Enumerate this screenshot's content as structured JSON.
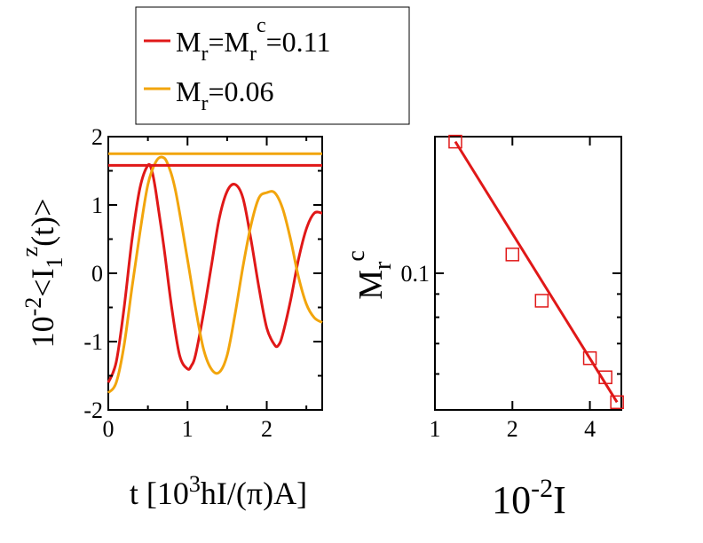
{
  "colors": {
    "red": "#e01818",
    "orange": "#f2a50c",
    "axis": "#000000"
  },
  "chart_data": [
    {
      "type": "line",
      "xlabel": "t [10³hI/(π)A]",
      "ylabel": "10⁻²<I₁ᶻ(t)>",
      "xlim": [
        0,
        2.7
      ],
      "ylim": [
        -2,
        2
      ],
      "x_ticks": [
        "0",
        "1",
        "2"
      ],
      "y_ticks": [
        "-2",
        "-1",
        "0",
        "1",
        "2"
      ],
      "legend": {
        "placement": "top",
        "entries": [
          {
            "label": "M_r=M_r^c=0.11",
            "color": "#e01818"
          },
          {
            "label": "M_r=0.06",
            "color": "#f2a50c"
          }
        ]
      },
      "series": [
        {
          "name": "M_r=M_r^c=0.11",
          "color": "#e01818",
          "x": [
            0,
            0.1,
            0.2,
            0.3,
            0.4,
            0.5,
            0.55,
            0.6,
            0.7,
            0.8,
            0.9,
            1.0,
            1.05,
            1.1,
            1.2,
            1.3,
            1.4,
            1.5,
            1.6,
            1.7,
            1.8,
            1.9,
            2.0,
            2.1,
            2.15,
            2.2,
            2.3,
            2.4,
            2.5,
            2.6,
            2.7
          ],
          "y": [
            -1.6,
            -1.3,
            -0.5,
            0.5,
            1.25,
            1.58,
            1.5,
            1.2,
            0.4,
            -0.5,
            -1.2,
            -1.4,
            -1.35,
            -1.2,
            -0.6,
            0.1,
            0.8,
            1.2,
            1.3,
            1.1,
            0.5,
            -0.2,
            -0.8,
            -1.05,
            -1.05,
            -0.9,
            -0.4,
            0.2,
            0.65,
            0.88,
            0.88
          ]
        },
        {
          "name": "M_r=0.06",
          "color": "#f2a50c",
          "x": [
            0,
            0.1,
            0.2,
            0.3,
            0.4,
            0.5,
            0.6,
            0.68,
            0.75,
            0.85,
            1.0,
            1.1,
            1.2,
            1.3,
            1.4,
            1.5,
            1.6,
            1.7,
            1.8,
            1.9,
            2.0,
            2.1,
            2.2,
            2.3,
            2.4,
            2.5,
            2.6,
            2.7
          ],
          "y": [
            -1.75,
            -1.6,
            -1.05,
            -0.2,
            0.6,
            1.3,
            1.63,
            1.7,
            1.6,
            1.2,
            0.2,
            -0.5,
            -1.1,
            -1.4,
            -1.45,
            -1.2,
            -0.6,
            0.1,
            0.7,
            1.1,
            1.18,
            1.18,
            0.95,
            0.5,
            -0.05,
            -0.45,
            -0.65,
            -0.72
          ]
        },
        {
          "name": "",
          "color": "#e01818",
          "x": [
            0,
            2.7
          ],
          "y": [
            1.58,
            1.58
          ]
        },
        {
          "name": "",
          "color": "#f2a50c",
          "x": [
            0,
            2.7
          ],
          "y": [
            1.75,
            1.75
          ]
        }
      ]
    },
    {
      "type": "scatter",
      "xlabel": "10⁻²I",
      "ylabel": "M_r^c",
      "x_scale": "log",
      "y_scale": "log",
      "xlim": [
        1,
        5.3
      ],
      "ylim": [
        0.05,
        0.2
      ],
      "x_ticks": [
        "1",
        "2",
        "4"
      ],
      "y_ticks": [
        "0.1"
      ],
      "series": [
        {
          "name": "",
          "color": "#e01818",
          "marker": "open-square",
          "x": [
            1.2,
            2,
            2.6,
            4,
            4.6,
            5.1
          ],
          "y": [
            0.195,
            0.11,
            0.087,
            0.065,
            0.059,
            0.052
          ]
        },
        {
          "name": "",
          "color": "#e01818",
          "marker": "none",
          "x": [
            1.2,
            5.1
          ],
          "y": [
            0.195,
            0.052
          ]
        }
      ]
    }
  ]
}
